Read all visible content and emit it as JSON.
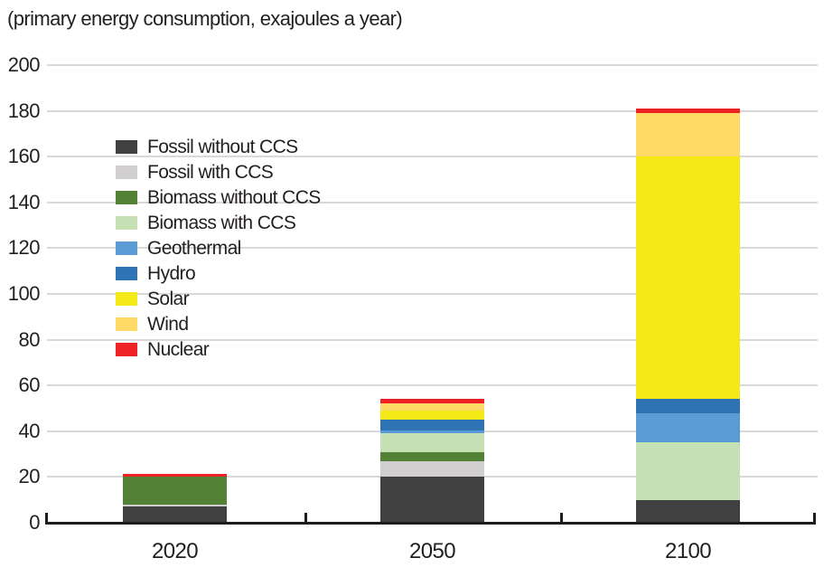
{
  "title": "(primary energy consumption, exajoules a year)",
  "chart_data": {
    "type": "bar",
    "stacked": true,
    "title": "(primary energy consumption, exajoules a year)",
    "xlabel": "",
    "ylabel": "",
    "categories": [
      "2020",
      "2050",
      "2100"
    ],
    "series": [
      {
        "name": "Fossil without CCS",
        "color": "#404040",
        "values": [
          7,
          20,
          10
        ]
      },
      {
        "name": "Fossil with CCS",
        "color": "#d0cece",
        "values": [
          1,
          7,
          0
        ]
      },
      {
        "name": "Biomass without CCS",
        "color": "#538135",
        "values": [
          12,
          4,
          0
        ]
      },
      {
        "name": "Biomass with CCS",
        "color": "#c5e0b3",
        "values": [
          0,
          8,
          25
        ]
      },
      {
        "name": "Geothermal",
        "color": "#5b9bd5",
        "values": [
          0,
          1.5,
          13
        ]
      },
      {
        "name": "Hydro",
        "color": "#2e74b5",
        "values": [
          0,
          4.5,
          6
        ]
      },
      {
        "name": "Solar",
        "color": "#f2e916",
        "values": [
          0,
          4,
          106
        ]
      },
      {
        "name": "Wind",
        "color": "#ffd965",
        "values": [
          0,
          3,
          19
        ]
      },
      {
        "name": "Nuclear",
        "color": "#ee2224",
        "values": [
          1.5,
          2,
          2
        ]
      }
    ],
    "totals": [
      21.5,
      54,
      181
    ],
    "ylim": [
      0,
      200
    ],
    "yticks": [
      0,
      20,
      40,
      60,
      80,
      100,
      120,
      140,
      160,
      180,
      200
    ],
    "grid": true,
    "legend_position": "upper-left-inside",
    "grid_color": "#d9d9d9",
    "axis_color": "#1f1c1d"
  }
}
